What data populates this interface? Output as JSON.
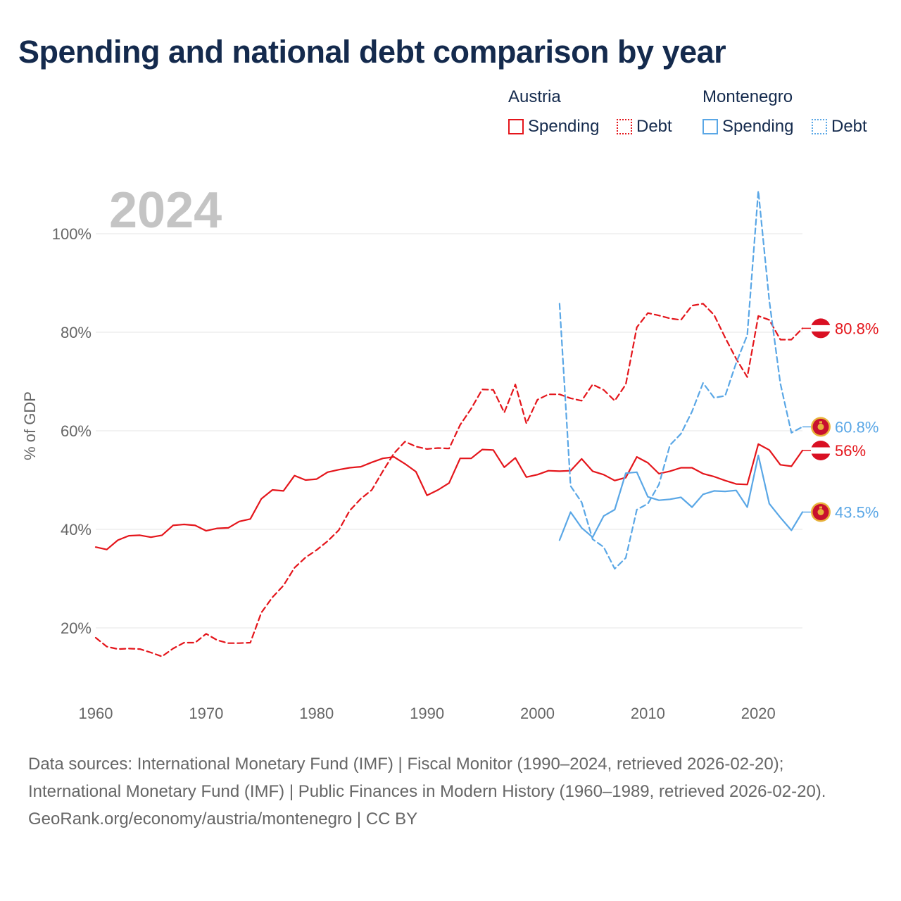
{
  "title": "Spending and national debt comparison by year",
  "legend": {
    "groups": [
      {
        "name": "Austria",
        "color": "#e4151b",
        "items": [
          {
            "label": "Spending",
            "style": "solid"
          },
          {
            "label": "Debt",
            "style": "dotted"
          }
        ]
      },
      {
        "name": "Montenegro",
        "color": "#5aa7e6",
        "items": [
          {
            "label": "Spending",
            "style": "solid"
          },
          {
            "label": "Debt",
            "style": "dotted"
          }
        ]
      }
    ]
  },
  "year_watermark": "2024",
  "footer": {
    "sources": "Data sources: International Monetary Fund (IMF) | Fiscal Monitor (1990–2024, retrieved 2026-02-20); International Monetary Fund (IMF) | Public Finances in Modern History (1960–1989, retrieved 2026-02-20).",
    "credit": "GeoRank.org/economy/austria/montenegro | CC BY"
  },
  "chart_data": {
    "type": "line",
    "title": "Spending and national debt comparison by year",
    "xlabel": "",
    "ylabel": "% of GDP",
    "xlim": [
      1960,
      2024
    ],
    "ylim": [
      10,
      110
    ],
    "x_ticks": [
      1960,
      1970,
      1980,
      1990,
      2000,
      2010,
      2020
    ],
    "y_ticks": [
      20,
      40,
      60,
      80,
      100
    ],
    "y_tick_labels": [
      "20%",
      "40%",
      "60%",
      "80%",
      "100%"
    ],
    "grid": true,
    "series": [
      {
        "name": "Austria Spending",
        "country": "Austria",
        "measure": "Spending",
        "color": "#e4151b",
        "dash": "solid",
        "end_label": "56%",
        "x": [
          1960,
          1961,
          1962,
          1963,
          1964,
          1965,
          1966,
          1967,
          1968,
          1969,
          1970,
          1971,
          1972,
          1973,
          1974,
          1975,
          1976,
          1977,
          1978,
          1979,
          1980,
          1981,
          1982,
          1983,
          1984,
          1985,
          1986,
          1987,
          1988,
          1989,
          1990,
          1991,
          1992,
          1993,
          1994,
          1995,
          1996,
          1997,
          1998,
          1999,
          2000,
          2001,
          2002,
          2003,
          2004,
          2005,
          2006,
          2007,
          2008,
          2009,
          2010,
          2011,
          2012,
          2013,
          2014,
          2015,
          2016,
          2017,
          2018,
          2019,
          2020,
          2021,
          2022,
          2023,
          2024
        ],
        "values": [
          36.4,
          35.9,
          37.8,
          38.7,
          38.8,
          38.4,
          38.8,
          40.8,
          41.0,
          40.8,
          39.7,
          40.2,
          40.3,
          41.6,
          42.1,
          46.2,
          48.0,
          47.8,
          50.9,
          50.0,
          50.2,
          51.6,
          52.1,
          52.5,
          52.7,
          53.6,
          54.4,
          54.7,
          53.3,
          51.7,
          46.9,
          48.0,
          49.4,
          54.4,
          54.4,
          56.2,
          56.1,
          52.6,
          54.5,
          50.6,
          51.1,
          51.9,
          51.8,
          51.9,
          54.3,
          51.8,
          51.1,
          49.9,
          50.5,
          54.7,
          53.5,
          51.3,
          51.8,
          52.5,
          52.5,
          51.3,
          50.7,
          49.9,
          49.2,
          49.1,
          57.3,
          56.1,
          53.1,
          52.8,
          56.0
        ]
      },
      {
        "name": "Austria Debt",
        "country": "Austria",
        "measure": "Debt",
        "color": "#e4151b",
        "dash": "dashed",
        "end_label": "80.8%",
        "x": [
          1960,
          1961,
          1962,
          1963,
          1964,
          1965,
          1966,
          1967,
          1968,
          1969,
          1970,
          1971,
          1972,
          1973,
          1974,
          1975,
          1976,
          1977,
          1978,
          1979,
          1980,
          1981,
          1982,
          1983,
          1984,
          1985,
          1986,
          1987,
          1988,
          1989,
          1990,
          1991,
          1992,
          1993,
          1994,
          1995,
          1996,
          1997,
          1998,
          1999,
          2000,
          2001,
          2002,
          2003,
          2004,
          2005,
          2006,
          2007,
          2008,
          2009,
          2010,
          2011,
          2012,
          2013,
          2014,
          2015,
          2016,
          2017,
          2018,
          2019,
          2020,
          2021,
          2022,
          2023,
          2024
        ],
        "values": [
          18.0,
          16.2,
          15.7,
          15.8,
          15.7,
          15.0,
          14.2,
          15.8,
          17.0,
          17.0,
          18.8,
          17.5,
          16.9,
          16.9,
          17.0,
          23.1,
          26.2,
          28.6,
          32.2,
          34.3,
          35.8,
          37.6,
          39.8,
          43.8,
          46.2,
          48.0,
          51.8,
          55.4,
          57.8,
          56.8,
          56.3,
          56.5,
          56.4,
          61.2,
          64.5,
          68.4,
          68.3,
          63.7,
          69.4,
          61.5,
          66.3,
          67.4,
          67.4,
          66.6,
          66.1,
          69.4,
          68.3,
          66.1,
          69.4,
          81.0,
          83.9,
          83.4,
          82.8,
          82.5,
          85.4,
          85.8,
          83.5,
          78.9,
          74.6,
          70.9,
          83.3,
          82.5,
          78.5,
          78.5,
          80.8
        ]
      },
      {
        "name": "Montenegro Spending",
        "country": "Montenegro",
        "measure": "Spending",
        "color": "#5aa7e6",
        "dash": "solid",
        "end_label": "43.5%",
        "x": [
          2002,
          2003,
          2004,
          2005,
          2006,
          2007,
          2008,
          2009,
          2010,
          2011,
          2012,
          2013,
          2014,
          2015,
          2016,
          2017,
          2018,
          2019,
          2020,
          2021,
          2022,
          2023,
          2024
        ],
        "values": [
          37.8,
          43.5,
          40.3,
          38.4,
          42.7,
          44.0,
          51.4,
          51.6,
          46.6,
          45.9,
          46.1,
          46.5,
          44.5,
          47.1,
          47.8,
          47.7,
          47.9,
          44.5,
          55.0,
          45.2,
          42.4,
          39.8,
          43.5
        ]
      },
      {
        "name": "Montenegro Debt",
        "country": "Montenegro",
        "measure": "Debt",
        "color": "#5aa7e6",
        "dash": "dashed",
        "end_label": "60.8%",
        "x": [
          2002,
          2003,
          2004,
          2005,
          2006,
          2007,
          2008,
          2009,
          2010,
          2011,
          2012,
          2013,
          2014,
          2015,
          2016,
          2017,
          2018,
          2019,
          2020,
          2021,
          2022,
          2023,
          2024
        ],
        "values": [
          85.8,
          48.8,
          45.5,
          38.0,
          36.4,
          32.0,
          34.2,
          44.0,
          45.2,
          49.1,
          57.1,
          59.4,
          63.9,
          69.7,
          66.7,
          67.1,
          73.8,
          79.4,
          108.7,
          86.4,
          69.6,
          59.6,
          60.8
        ]
      }
    ]
  }
}
